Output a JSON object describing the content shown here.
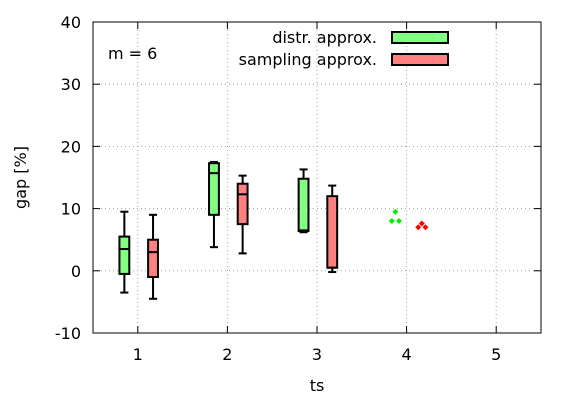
{
  "chart_data": {
    "type": "box",
    "title": "",
    "xlabel": "ts",
    "ylabel": "gap [%]",
    "xlim": [
      0.5,
      5.5
    ],
    "ylim": [
      -10,
      40
    ],
    "xticks": [
      1,
      2,
      3,
      4,
      5
    ],
    "yticks": [
      -10,
      0,
      10,
      20,
      30,
      40
    ],
    "grid": true,
    "legend_position": "top-right",
    "annotation": "m = 6",
    "series": [
      {
        "name": "distr. approx.",
        "color": "#80ff80",
        "boxes": [
          {
            "x": 1,
            "min": -3.5,
            "q1": -0.5,
            "median": 3.5,
            "q3": 5.5,
            "max": 9.5
          },
          {
            "x": 2,
            "min": 3.8,
            "q1": 9.0,
            "median": 15.7,
            "q3": 17.3,
            "max": 17.5
          },
          {
            "x": 3,
            "min": 6.2,
            "q1": 6.4,
            "median": 6.5,
            "q3": 14.8,
            "max": 16.3
          }
        ],
        "points": [
          {
            "x": 4,
            "y": 9.5
          },
          {
            "x": 4,
            "y": 8.0
          },
          {
            "x": 4,
            "y": 8.0
          }
        ],
        "points_color": "#00ee00"
      },
      {
        "name": "sampling approx.",
        "color": "#ff8080",
        "boxes": [
          {
            "x": 1,
            "min": -4.5,
            "q1": -1.0,
            "median": 3.0,
            "q3": 5.0,
            "max": 9.0
          },
          {
            "x": 2,
            "min": 2.8,
            "q1": 7.5,
            "median": 12.3,
            "q3": 14.0,
            "max": 15.3
          },
          {
            "x": 3,
            "min": -0.2,
            "q1": 0.5,
            "median": 0.5,
            "q3": 12.0,
            "max": 13.7
          }
        ],
        "points": [
          {
            "x": 4,
            "y": 7.6
          },
          {
            "x": 4,
            "y": 7.0
          },
          {
            "x": 4,
            "y": 7.0
          }
        ],
        "points_color": "#ff0000"
      }
    ]
  }
}
